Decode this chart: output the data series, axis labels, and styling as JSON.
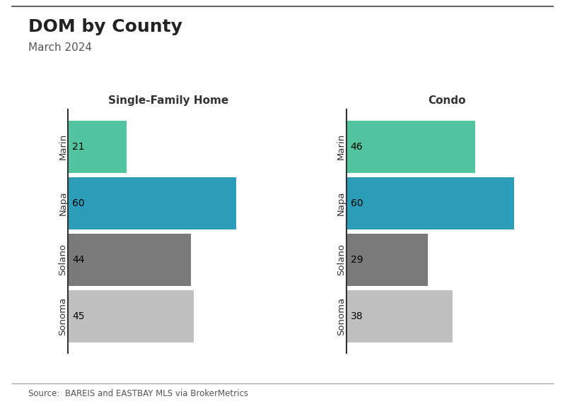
{
  "title": "DOM by County",
  "subtitle": "March 2024",
  "source": "Source:  BAREIS and EASTBAY MLS via BrokerMetrics",
  "categories": [
    "Marin",
    "Napa",
    "Solano",
    "Sonoma"
  ],
  "sfh_values": [
    21,
    60,
    44,
    45
  ],
  "condo_values": [
    46,
    60,
    29,
    38
  ],
  "sfh_title": "Single-Family Home",
  "condo_title": "Condo",
  "colors": [
    "#52C4A0",
    "#2B9DB8",
    "#7A7A7A",
    "#C0C0C0"
  ],
  "background_color": "#FFFFFF",
  "bar_height": 0.92,
  "xlim_sfh": [
    0,
    72
  ],
  "xlim_condo": [
    0,
    72
  ],
  "title_fontsize": 18,
  "subtitle_fontsize": 11,
  "label_fontsize": 9.5,
  "value_fontsize": 10,
  "source_fontsize": 8.5,
  "top_line_color": "#444444",
  "bottom_line_color": "#AAAAAA",
  "text_color": "#333333",
  "subtitle_color": "#555555"
}
